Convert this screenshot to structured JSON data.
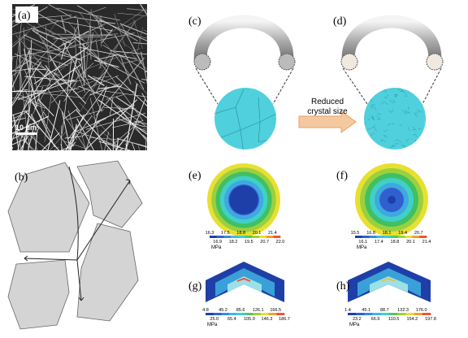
{
  "panels": {
    "a": {
      "label": "(a)",
      "scale_bar": "10 μm"
    },
    "b": {
      "label": "(b)"
    },
    "c": {
      "label": "(c)"
    },
    "d": {
      "label": "(d)"
    },
    "arrow_text": [
      "Reduced",
      "crystal size"
    ],
    "e": {
      "label": "(e)",
      "colorbar": {
        "unit": "MPa",
        "upper": [
          "16.3",
          "17.5",
          "18.8",
          "20.1",
          "21.4"
        ],
        "lower": [
          "16.9",
          "18.2",
          "19.5",
          "20.7",
          "22.0"
        ]
      }
    },
    "f": {
      "label": "(f)",
      "colorbar": {
        "unit": "MPa",
        "upper": [
          "15.5",
          "16.8",
          "18.1",
          "19.4",
          "20.7"
        ],
        "lower": [
          "16.1",
          "17.4",
          "18.8",
          "20.1",
          "21.4"
        ]
      }
    },
    "g": {
      "label": "(g)",
      "colorbar": {
        "unit": "MPa",
        "upper": [
          "4.8",
          "45.2",
          "85.6",
          "126.1",
          "166.5"
        ],
        "lower": [
          "25.0",
          "65.4",
          "105.9",
          "146.3",
          "186.7"
        ]
      }
    },
    "h": {
      "label": "(h)",
      "colorbar": {
        "unit": "MPa",
        "upper": [
          "1.4",
          "45.1",
          "88.7",
          "132.3",
          "176.0"
        ],
        "lower": [
          "23.2",
          "66.9",
          "110.5",
          "154.2",
          "197.8"
        ]
      }
    }
  }
}
